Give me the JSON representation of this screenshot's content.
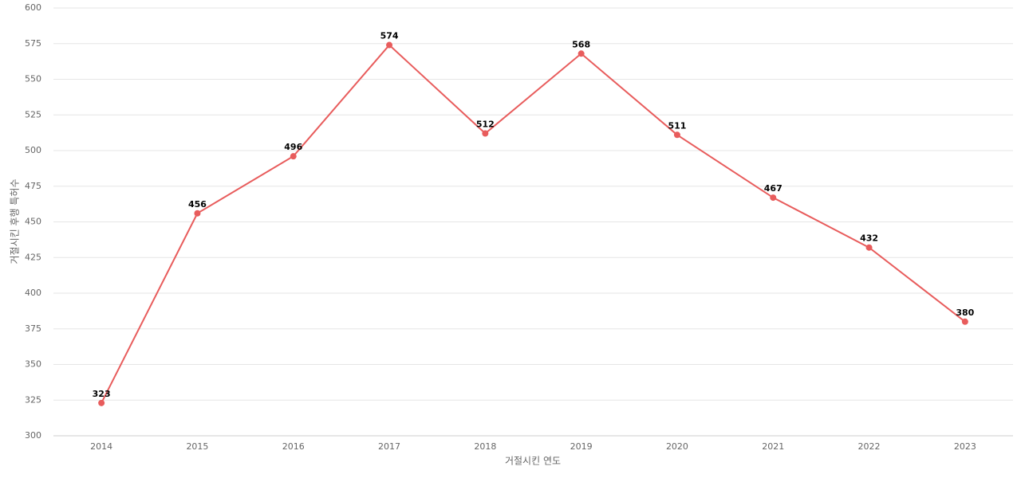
{
  "chart_data": {
    "type": "line",
    "xlabel": "거절시킨 연도",
    "ylabel": "거절시킨 후행 특허수",
    "categories": [
      "2014",
      "2015",
      "2016",
      "2017",
      "2018",
      "2019",
      "2020",
      "2021",
      "2022",
      "2023"
    ],
    "series": [
      {
        "name": "거절시킨 후행 특허수",
        "color": "#e85c5c",
        "values": [
          323,
          456,
          496,
          574,
          512,
          568,
          511,
          467,
          432,
          380
        ]
      }
    ],
    "ylim": [
      300,
      600
    ],
    "yticks": [
      300,
      325,
      350,
      375,
      400,
      425,
      450,
      475,
      500,
      525,
      550,
      575,
      600
    ],
    "grid": true
  }
}
